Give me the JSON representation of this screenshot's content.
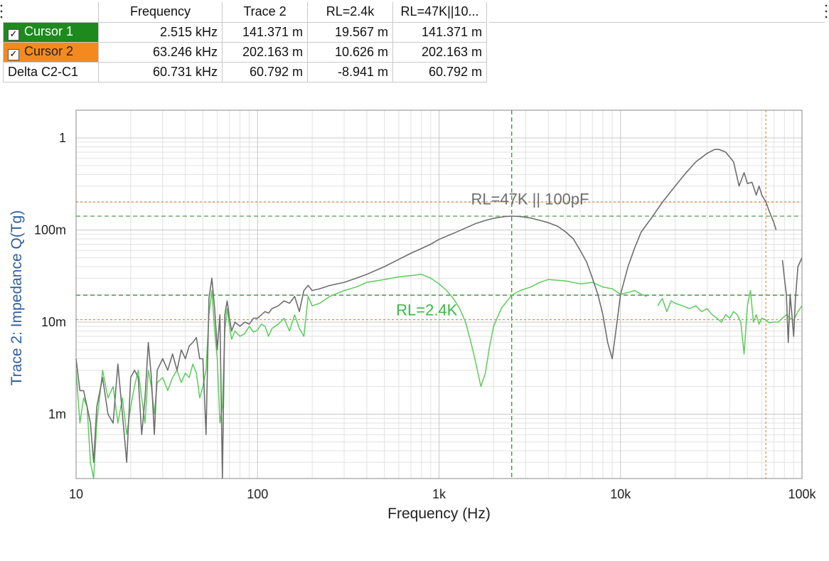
{
  "cursor_table": {
    "headers": [
      "Frequency",
      "Trace 2",
      "RL=2.4k",
      "RL=47K||10..."
    ],
    "rows": [
      {
        "label": "Cursor 1",
        "checked": true,
        "color": "#1c8a1c",
        "values": [
          "2.515 kHz",
          "141.371 m",
          "19.567 m",
          "141.371 m"
        ]
      },
      {
        "label": "Cursor 2",
        "checked": true,
        "color": "#f48a1e",
        "values": [
          "63.246 kHz",
          "202.163 m",
          "10.626 m",
          "202.163 m"
        ]
      },
      {
        "label": "Delta C2-C1",
        "checked": false,
        "values": [
          "60.731 kHz",
          "60.792 m",
          "-8.941 m",
          "60.792 m"
        ]
      }
    ]
  },
  "chart_data": {
    "type": "line",
    "xlabel": "Frequency (Hz)",
    "ylabel": "Trace 2: Impedance Q(Tg)",
    "x_scale": "log",
    "y_scale": "log",
    "xlim": [
      10,
      100000
    ],
    "ylim": [
      0.0002,
      2
    ],
    "x_ticks": [
      {
        "v": 10,
        "label": "10"
      },
      {
        "v": 100,
        "label": "100"
      },
      {
        "v": 1000,
        "label": "1k"
      },
      {
        "v": 10000,
        "label": "10k"
      },
      {
        "v": 100000,
        "label": "100k"
      }
    ],
    "y_ticks": [
      {
        "v": 1,
        "label": "1"
      },
      {
        "v": 0.1,
        "label": "100m"
      },
      {
        "v": 0.01,
        "label": "10m"
      },
      {
        "v": 0.001,
        "label": "1m"
      }
    ],
    "grid": true,
    "colors": {
      "rl47k": "#6e6e6e",
      "rl24k": "#5ccc5c",
      "cursor1": "#1c8a1c",
      "cursor2": "#e08a28",
      "ylabel": "#2f5f9e"
    },
    "annotations": [
      {
        "text": "RL=47K || 100pF",
        "x": 1500,
        "y": 0.19,
        "color": "#6e6e6e"
      },
      {
        "text": "RL=2.4K",
        "x": 580,
        "y": 0.0118,
        "color": "#3cb84a"
      }
    ],
    "cursors": [
      {
        "name": "Cursor 1",
        "x": 2515,
        "y_values": [
          0.141371,
          0.019567
        ]
      },
      {
        "name": "Cursor 2",
        "x": 63246,
        "y_values": [
          0.202163,
          0.010626
        ]
      }
    ],
    "series": [
      {
        "name": "RL=47K || 100pF",
        "points": [
          [
            10,
            0.004
          ],
          [
            10.5,
            0.0018
          ],
          [
            11,
            0.0018
          ],
          [
            11.5,
            0.0012
          ],
          [
            12,
            0.0008
          ],
          [
            12.5,
            0.0003
          ],
          [
            13,
            0.0012
          ],
          [
            14,
            0.0025
          ],
          [
            15,
            0.001
          ],
          [
            16,
            0.0008
          ],
          [
            17,
            0.0035
          ],
          [
            18,
            0.001
          ],
          [
            19,
            0.0003
          ],
          [
            20,
            0.0025
          ],
          [
            21,
            0.003
          ],
          [
            22,
            0.0025
          ],
          [
            23,
            0.0006
          ],
          [
            24,
            0.0015
          ],
          [
            25,
            0.006
          ],
          [
            26,
            0.0025
          ],
          [
            27,
            0.0006
          ],
          [
            28,
            0.003
          ],
          [
            30,
            0.004
          ],
          [
            32,
            0.003
          ],
          [
            34,
            0.0045
          ],
          [
            36,
            0.003
          ],
          [
            38,
            0.005
          ],
          [
            40,
            0.004
          ],
          [
            42,
            0.0055
          ],
          [
            44,
            0.006
          ],
          [
            46,
            0.0068
          ],
          [
            48,
            0.004
          ],
          [
            50,
            0.004
          ],
          [
            52,
            0.0006
          ],
          [
            54,
            0.018
          ],
          [
            56,
            0.03
          ],
          [
            58,
            0.014
          ],
          [
            60,
            0.005
          ],
          [
            62,
            0.012
          ],
          [
            64,
            0.0002
          ],
          [
            66,
            0.012
          ],
          [
            68,
            0.017
          ],
          [
            70,
            0.011
          ],
          [
            72,
            0.008
          ],
          [
            75,
            0.01
          ],
          [
            80,
            0.009
          ],
          [
            85,
            0.01
          ],
          [
            90,
            0.0095
          ],
          [
            95,
            0.011
          ],
          [
            100,
            0.011
          ],
          [
            105,
            0.012
          ],
          [
            110,
            0.013
          ],
          [
            115,
            0.0125
          ],
          [
            120,
            0.014
          ],
          [
            130,
            0.015
          ],
          [
            140,
            0.017
          ],
          [
            150,
            0.016
          ],
          [
            160,
            0.019
          ],
          [
            170,
            0.013
          ],
          [
            180,
            0.022
          ],
          [
            190,
            0.025
          ],
          [
            200,
            0.022
          ],
          [
            220,
            0.023
          ],
          [
            250,
            0.025
          ],
          [
            300,
            0.027
          ],
          [
            350,
            0.03
          ],
          [
            400,
            0.033
          ],
          [
            500,
            0.04
          ],
          [
            600,
            0.048
          ],
          [
            700,
            0.056
          ],
          [
            800,
            0.063
          ],
          [
            900,
            0.07
          ],
          [
            1000,
            0.079
          ],
          [
            1200,
            0.092
          ],
          [
            1400,
            0.105
          ],
          [
            1600,
            0.118
          ],
          [
            1800,
            0.127
          ],
          [
            2000,
            0.134
          ],
          [
            2300,
            0.14
          ],
          [
            2515,
            0.1414
          ],
          [
            2800,
            0.14
          ],
          [
            3200,
            0.135
          ],
          [
            3600,
            0.127
          ],
          [
            4000,
            0.12
          ],
          [
            4500,
            0.11
          ],
          [
            5000,
            0.095
          ],
          [
            5500,
            0.08
          ],
          [
            6000,
            0.06
          ],
          [
            6500,
            0.045
          ],
          [
            7000,
            0.03
          ],
          [
            7500,
            0.02
          ],
          [
            8000,
            0.012
          ],
          [
            8500,
            0.006
          ],
          [
            9000,
            0.004
          ],
          [
            9500,
            0.009
          ],
          [
            10000,
            0.02
          ],
          [
            11000,
            0.04
          ],
          [
            12000,
            0.065
          ],
          [
            13000,
            0.095
          ],
          [
            15000,
            0.14
          ],
          [
            17000,
            0.2
          ],
          [
            20000,
            0.3
          ],
          [
            23000,
            0.42
          ],
          [
            26000,
            0.55
          ],
          [
            30000,
            0.68
          ],
          [
            33000,
            0.75
          ],
          [
            35000,
            0.75
          ],
          [
            38000,
            0.7
          ],
          [
            42000,
            0.55
          ],
          [
            45000,
            0.3
          ],
          [
            48000,
            0.42
          ],
          [
            50000,
            0.32
          ],
          [
            53000,
            0.33
          ],
          [
            56000,
            0.24
          ],
          [
            58000,
            0.3
          ],
          [
            60000,
            0.24
          ],
          [
            63246,
            0.2022
          ],
          [
            66000,
            0.16
          ],
          [
            70000,
            0.12
          ],
          [
            72000,
            0.1
          ],
          [
            null,
            null
          ],
          [
            78000,
            0.047
          ],
          [
            80000,
            0.03
          ],
          [
            82000,
            0.02
          ],
          [
            84000,
            0.006
          ],
          [
            86000,
            0.02
          ],
          [
            88000,
            0.012
          ],
          [
            90000,
            0.007
          ],
          [
            92000,
            0.018
          ],
          [
            95000,
            0.04
          ],
          [
            100000,
            0.05
          ]
        ]
      },
      {
        "name": "RL=2.4K",
        "points": [
          [
            10,
            0.003
          ],
          [
            10.5,
            0.0008
          ],
          [
            11,
            0.0015
          ],
          [
            11.5,
            0.0012
          ],
          [
            12,
            0.0003
          ],
          [
            12.5,
            0.0002
          ],
          [
            13,
            0.0008
          ],
          [
            14,
            0.003
          ],
          [
            15,
            0.0015
          ],
          [
            16,
            0.002
          ],
          [
            17,
            0.0008
          ],
          [
            18,
            0.0015
          ],
          [
            19,
            0.0006
          ],
          [
            20,
            0.0012
          ],
          [
            21,
            0.002
          ],
          [
            22,
            0.003
          ],
          [
            23,
            0.0015
          ],
          [
            24,
            0.0008
          ],
          [
            25,
            0.003
          ],
          [
            26,
            0.002
          ],
          [
            27,
            0.001
          ],
          [
            28,
            0.0022
          ],
          [
            30,
            0.0025
          ],
          [
            32,
            0.0018
          ],
          [
            34,
            0.0025
          ],
          [
            36,
            0.003
          ],
          [
            38,
            0.0022
          ],
          [
            40,
            0.0028
          ],
          [
            42,
            0.0025
          ],
          [
            44,
            0.0035
          ],
          [
            46,
            0.0028
          ],
          [
            48,
            0.0015
          ],
          [
            50,
            0.002
          ],
          [
            52,
            0.003
          ],
          [
            54,
            0.012
          ],
          [
            56,
            0.022
          ],
          [
            58,
            0.008
          ],
          [
            60,
            0.004
          ],
          [
            62,
            0.0008
          ],
          [
            64,
            0.0012
          ],
          [
            66,
            0.008
          ],
          [
            68,
            0.014
          ],
          [
            70,
            0.009
          ],
          [
            72,
            0.0065
          ],
          [
            75,
            0.008
          ],
          [
            80,
            0.007
          ],
          [
            85,
            0.0075
          ],
          [
            90,
            0.009
          ],
          [
            95,
            0.0078
          ],
          [
            100,
            0.0082
          ],
          [
            105,
            0.0095
          ],
          [
            110,
            0.009
          ],
          [
            115,
            0.007
          ],
          [
            120,
            0.0085
          ],
          [
            130,
            0.0095
          ],
          [
            140,
            0.011
          ],
          [
            150,
            0.008
          ],
          [
            160,
            0.012
          ],
          [
            170,
            0.0085
          ],
          [
            180,
            0.007
          ],
          [
            190,
            0.019
          ],
          [
            200,
            0.015
          ],
          [
            220,
            0.016
          ],
          [
            250,
            0.019
          ],
          [
            300,
            0.022
          ],
          [
            350,
            0.024
          ],
          [
            400,
            0.027
          ],
          [
            500,
            0.029
          ],
          [
            600,
            0.031
          ],
          [
            700,
            0.032
          ],
          [
            800,
            0.033
          ],
          [
            900,
            0.03
          ],
          [
            1000,
            0.026
          ],
          [
            1100,
            0.022
          ],
          [
            1200,
            0.018
          ],
          [
            1300,
            0.014
          ],
          [
            1400,
            0.01
          ],
          [
            1500,
            0.006
          ],
          [
            1600,
            0.0035
          ],
          [
            1700,
            0.002
          ],
          [
            1800,
            0.0028
          ],
          [
            1900,
            0.0055
          ],
          [
            2000,
            0.009
          ],
          [
            2200,
            0.014
          ],
          [
            2515,
            0.0196
          ],
          [
            2800,
            0.022
          ],
          [
            3200,
            0.024
          ],
          [
            3600,
            0.027
          ],
          [
            4000,
            0.029
          ],
          [
            5000,
            0.028
          ],
          [
            6000,
            0.026
          ],
          [
            7000,
            0.027
          ],
          [
            8000,
            0.024
          ],
          [
            9000,
            0.023
          ],
          [
            10000,
            0.02
          ],
          [
            11000,
            0.021
          ],
          [
            12000,
            0.022
          ],
          [
            13000,
            0.02
          ],
          [
            14000,
            0.019
          ],
          [
            null,
            null
          ],
          [
            16000,
            0.015
          ],
          [
            17000,
            0.018
          ],
          [
            18000,
            0.013
          ],
          [
            19000,
            0.017
          ],
          [
            20000,
            0.016
          ],
          [
            22000,
            0.015
          ],
          [
            24000,
            0.014
          ],
          [
            26000,
            0.015
          ],
          [
            28000,
            0.013
          ],
          [
            30000,
            0.014
          ],
          [
            32000,
            0.012
          ],
          [
            34000,
            0.011
          ],
          [
            36000,
            0.01
          ],
          [
            38000,
            0.012
          ],
          [
            40000,
            0.011
          ],
          [
            42000,
            0.013
          ],
          [
            44000,
            0.012
          ],
          [
            46000,
            0.01
          ],
          [
            48000,
            0.0045
          ],
          [
            50000,
            0.015
          ],
          [
            52000,
            0.022
          ],
          [
            54000,
            0.01
          ],
          [
            56000,
            0.012
          ],
          [
            58000,
            0.0095
          ],
          [
            60000,
            0.011
          ],
          [
            63246,
            0.0106
          ],
          [
            66000,
            0.0098
          ],
          [
            70000,
            0.01
          ],
          [
            74000,
            0.01
          ],
          [
            78000,
            0.011
          ],
          [
            82000,
            0.012
          ],
          [
            86000,
            0.011
          ],
          [
            90000,
            0.0105
          ],
          [
            95000,
            0.013
          ],
          [
            100000,
            0.015
          ]
        ]
      }
    ]
  }
}
